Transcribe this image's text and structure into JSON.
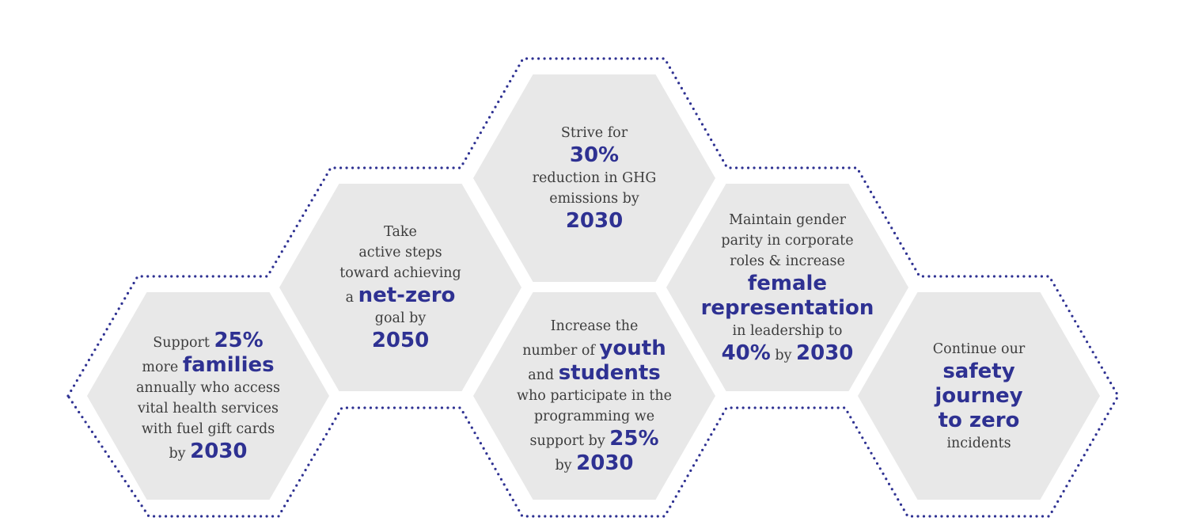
{
  "colors": {
    "accent": "#2e3192",
    "hex_fill": "#e8e8e8",
    "text": "#3d3d3d",
    "outline": "#2e3192"
  },
  "goals": [
    {
      "lines": [
        [
          {
            "t": "Support ",
            "b": false
          },
          {
            "t": "25%",
            "b": true
          }
        ],
        [
          {
            "t": "more ",
            "b": false
          },
          {
            "t": "families",
            "b": true
          }
        ],
        [
          {
            "t": "annually who access",
            "b": false
          }
        ],
        [
          {
            "t": "vital health services",
            "b": false
          }
        ],
        [
          {
            "t": "with fuel gift cards",
            "b": false
          }
        ],
        [
          {
            "t": "by ",
            "b": false
          },
          {
            "t": "2030",
            "b": true
          }
        ]
      ]
    },
    {
      "lines": [
        [
          {
            "t": "Take",
            "b": false
          }
        ],
        [
          {
            "t": "active steps",
            "b": false
          }
        ],
        [
          {
            "t": "toward achieving",
            "b": false
          }
        ],
        [
          {
            "t": "a ",
            "b": false
          },
          {
            "t": "net-zero",
            "b": true
          }
        ],
        [
          {
            "t": "goal by",
            "b": false
          }
        ],
        [
          {
            "t": "2050",
            "b": true
          }
        ]
      ]
    },
    {
      "lines": [
        [
          {
            "t": "Strive for",
            "b": false
          }
        ],
        [
          {
            "t": "30%",
            "b": true
          }
        ],
        [
          {
            "t": "reduction in GHG",
            "b": false
          }
        ],
        [
          {
            "t": "emissions by",
            "b": false
          }
        ],
        [
          {
            "t": "2030",
            "b": true
          }
        ]
      ]
    },
    {
      "lines": [
        [
          {
            "t": "Increase the",
            "b": false
          }
        ],
        [
          {
            "t": "number of ",
            "b": false
          },
          {
            "t": "youth",
            "b": true
          }
        ],
        [
          {
            "t": "and ",
            "b": false
          },
          {
            "t": "students",
            "b": true
          }
        ],
        [
          {
            "t": "who participate in the",
            "b": false
          }
        ],
        [
          {
            "t": "programming we",
            "b": false
          }
        ],
        [
          {
            "t": "support by ",
            "b": false
          },
          {
            "t": "25%",
            "b": true
          }
        ],
        [
          {
            "t": "by ",
            "b": false
          },
          {
            "t": "2030",
            "b": true
          }
        ]
      ]
    },
    {
      "lines": [
        [
          {
            "t": "Maintain gender",
            "b": false
          }
        ],
        [
          {
            "t": "parity in corporate",
            "b": false
          }
        ],
        [
          {
            "t": "roles & increase",
            "b": false
          }
        ],
        [
          {
            "t": "female",
            "b": true
          }
        ],
        [
          {
            "t": "representation",
            "b": true
          }
        ],
        [
          {
            "t": "in leadership to",
            "b": false
          }
        ],
        [
          {
            "t": "40%",
            "b": true
          },
          {
            "t": " by ",
            "b": false
          },
          {
            "t": "2030",
            "b": true
          }
        ]
      ]
    },
    {
      "lines": [
        [
          {
            "t": "Continue our",
            "b": false
          }
        ],
        [
          {
            "t": "safety",
            "b": true
          }
        ],
        [
          {
            "t": "journey",
            "b": true
          }
        ],
        [
          {
            "t": "to zero",
            "b": true
          }
        ],
        [
          {
            "t": "incidents",
            "b": false
          }
        ]
      ]
    }
  ]
}
